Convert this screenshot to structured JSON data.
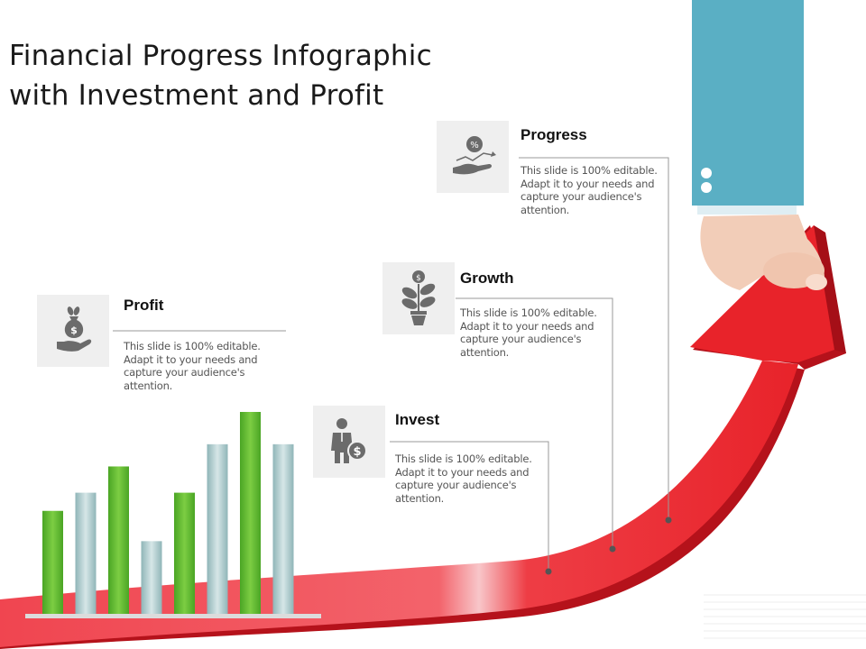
{
  "title": {
    "line1": "Financial Progress Infographic",
    "line2": "with Investment and Profit"
  },
  "cards": [
    {
      "key": "progress",
      "heading": "Progress",
      "text": "This slide is 100% editable. Adapt it to your needs and capture your audience's attention.",
      "icon": "hand-percent-growth-icon"
    },
    {
      "key": "growth",
      "heading": "Growth",
      "text": "This slide is 100% editable. Adapt it to your needs and capture your audience's attention.",
      "icon": "plant-dollar-icon"
    },
    {
      "key": "profit",
      "heading": "Profit",
      "text": "This slide is 100% editable. Adapt it to your needs and capture your audience's attention.",
      "icon": "hand-moneybag-icon"
    },
    {
      "key": "invest",
      "heading": "Invest",
      "text": "This slide is 100% editable. Adapt it to your needs and capture your audience's attention.",
      "icon": "businessman-coin-icon"
    }
  ],
  "bars": {
    "series": [
      {
        "name": "green",
        "color": "#5cb82e"
      },
      {
        "name": "teal",
        "color": "#a7c7c9"
      }
    ],
    "relative_heights": [
      0.51,
      0.6,
      0.73,
      0.36,
      0.6,
      0.84,
      1.0,
      0.84
    ],
    "colors": [
      "green",
      "teal",
      "green",
      "teal",
      "green",
      "teal",
      "green",
      "teal"
    ]
  },
  "colors": {
    "arrow": "#e8232a",
    "arrow_dark": "#b5121b",
    "sleeve": "#5aafc4",
    "skin": "#f2cdb8",
    "icon_box": "#efefef",
    "icon": "#6b6b6b"
  }
}
